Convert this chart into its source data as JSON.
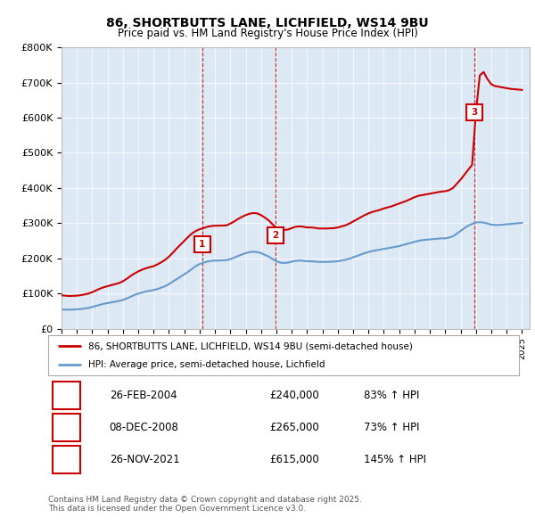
{
  "title": "86, SHORTBUTTS LANE, LICHFIELD, WS14 9BU",
  "subtitle": "Price paid vs. HM Land Registry's House Price Index (HPI)",
  "plot_bg_color": "#dce9f5",
  "ylim": [
    0,
    800000
  ],
  "yticks": [
    0,
    100000,
    200000,
    300000,
    400000,
    500000,
    600000,
    700000,
    800000
  ],
  "ytick_labels": [
    "£0",
    "£100K",
    "£200K",
    "£300K",
    "£400K",
    "£500K",
    "£600K",
    "£700K",
    "£800K"
  ],
  "xlim_start": 1995.0,
  "xlim_end": 2025.5,
  "legend_label_red": "86, SHORTBUTTS LANE, LICHFIELD, WS14 9BU (semi-detached house)",
  "legend_label_blue": "HPI: Average price, semi-detached house, Lichfield",
  "sale_dates": [
    2004.15,
    2008.93,
    2021.9
  ],
  "sale_prices": [
    240000,
    265000,
    615000
  ],
  "sale_labels": [
    "1",
    "2",
    "3"
  ],
  "sale_info": [
    [
      "1",
      "26-FEB-2004",
      "£240,000",
      "83% ↑ HPI"
    ],
    [
      "2",
      "08-DEC-2008",
      "£265,000",
      "73% ↑ HPI"
    ],
    [
      "3",
      "26-NOV-2021",
      "£615,000",
      "145% ↑ HPI"
    ]
  ],
  "footer": "Contains HM Land Registry data © Crown copyright and database right 2025.\nThis data is licensed under the Open Government Licence v3.0.",
  "red_color": "#cc0000",
  "blue_color": "#6699cc",
  "hpi_years": [
    1995.0,
    1995.25,
    1995.5,
    1995.75,
    1996.0,
    1996.25,
    1996.5,
    1996.75,
    1997.0,
    1997.25,
    1997.5,
    1997.75,
    1998.0,
    1998.25,
    1998.5,
    1998.75,
    1999.0,
    1999.25,
    1999.5,
    1999.75,
    2000.0,
    2000.25,
    2000.5,
    2000.75,
    2001.0,
    2001.25,
    2001.5,
    2001.75,
    2002.0,
    2002.25,
    2002.5,
    2002.75,
    2003.0,
    2003.25,
    2003.5,
    2003.75,
    2004.0,
    2004.25,
    2004.5,
    2004.75,
    2005.0,
    2005.25,
    2005.5,
    2005.75,
    2006.0,
    2006.25,
    2006.5,
    2006.75,
    2007.0,
    2007.25,
    2007.5,
    2007.75,
    2008.0,
    2008.25,
    2008.5,
    2008.75,
    2009.0,
    2009.25,
    2009.5,
    2009.75,
    2010.0,
    2010.25,
    2010.5,
    2010.75,
    2011.0,
    2011.25,
    2011.5,
    2011.75,
    2012.0,
    2012.25,
    2012.5,
    2012.75,
    2013.0,
    2013.25,
    2013.5,
    2013.75,
    2014.0,
    2014.25,
    2014.5,
    2014.75,
    2015.0,
    2015.25,
    2015.5,
    2015.75,
    2016.0,
    2016.25,
    2016.5,
    2016.75,
    2017.0,
    2017.25,
    2017.5,
    2017.75,
    2018.0,
    2018.25,
    2018.5,
    2018.75,
    2019.0,
    2019.25,
    2019.5,
    2019.75,
    2020.0,
    2020.25,
    2020.5,
    2020.75,
    2021.0,
    2021.25,
    2021.5,
    2021.75,
    2022.0,
    2022.25,
    2022.5,
    2022.75,
    2023.0,
    2023.25,
    2023.5,
    2023.75,
    2024.0,
    2024.25,
    2024.5,
    2024.75,
    2025.0
  ],
  "hpi_values": [
    55000,
    54500,
    54000,
    54500,
    55000,
    56000,
    57500,
    59000,
    62000,
    65000,
    68000,
    71000,
    73000,
    75000,
    77000,
    79000,
    82000,
    86000,
    91000,
    96000,
    100000,
    103000,
    106000,
    108000,
    110000,
    113000,
    117000,
    121000,
    127000,
    134000,
    141000,
    148000,
    155000,
    162000,
    170000,
    178000,
    184000,
    188000,
    191000,
    193000,
    194000,
    194000,
    194500,
    195000,
    198000,
    202000,
    207000,
    211000,
    215000,
    218000,
    219000,
    218000,
    215000,
    210000,
    205000,
    198000,
    192000,
    188000,
    187000,
    188000,
    191000,
    193000,
    194000,
    193000,
    192000,
    192000,
    191000,
    190000,
    190000,
    190000,
    190500,
    191000,
    192000,
    194000,
    196000,
    199000,
    203000,
    207000,
    211000,
    215000,
    218000,
    221000,
    223000,
    225000,
    227000,
    229000,
    231000,
    233000,
    235000,
    238000,
    241000,
    244000,
    247000,
    250000,
    252000,
    253000,
    254000,
    255000,
    256000,
    257000,
    257000,
    259000,
    263000,
    270000,
    278000,
    286000,
    293000,
    298000,
    302000,
    303000,
    302000,
    299000,
    296000,
    295000,
    295000,
    296000,
    297000,
    298000,
    299000,
    300000,
    301000
  ],
  "red_years": [
    1995.0,
    1995.25,
    1995.5,
    1995.75,
    1996.0,
    1996.25,
    1996.5,
    1996.75,
    1997.0,
    1997.25,
    1997.5,
    1997.75,
    1998.0,
    1998.25,
    1998.5,
    1998.75,
    1999.0,
    1999.25,
    1999.5,
    1999.75,
    2000.0,
    2000.25,
    2000.5,
    2000.75,
    2001.0,
    2001.25,
    2001.5,
    2001.75,
    2002.0,
    2002.25,
    2002.5,
    2002.75,
    2003.0,
    2003.25,
    2003.5,
    2003.75,
    2004.0,
    2004.25,
    2004.5,
    2004.75,
    2005.0,
    2005.25,
    2005.5,
    2005.75,
    2006.0,
    2006.25,
    2006.5,
    2006.75,
    2007.0,
    2007.25,
    2007.5,
    2007.75,
    2008.0,
    2008.25,
    2008.5,
    2008.75,
    2009.0,
    2009.25,
    2009.5,
    2009.75,
    2010.0,
    2010.25,
    2010.5,
    2010.75,
    2011.0,
    2011.25,
    2011.5,
    2011.75,
    2012.0,
    2012.25,
    2012.5,
    2012.75,
    2013.0,
    2013.25,
    2013.5,
    2013.75,
    2014.0,
    2014.25,
    2014.5,
    2014.75,
    2015.0,
    2015.25,
    2015.5,
    2015.75,
    2016.0,
    2016.25,
    2016.5,
    2016.75,
    2017.0,
    2017.25,
    2017.5,
    2017.75,
    2018.0,
    2018.25,
    2018.5,
    2018.75,
    2019.0,
    2019.25,
    2019.5,
    2019.75,
    2020.0,
    2020.25,
    2020.5,
    2020.75,
    2021.0,
    2021.25,
    2021.5,
    2021.75,
    2022.0,
    2022.25,
    2022.5,
    2022.75,
    2023.0,
    2023.25,
    2023.5,
    2023.75,
    2024.0,
    2024.25,
    2024.5,
    2024.75,
    2025.0
  ],
  "red_values": [
    95000,
    94000,
    93000,
    93500,
    94000,
    95500,
    97500,
    100000,
    104000,
    109000,
    114000,
    118000,
    121000,
    124000,
    127000,
    130000,
    135000,
    142000,
    150000,
    157000,
    163000,
    168000,
    172000,
    175000,
    178000,
    183000,
    189000,
    196000,
    205000,
    216000,
    228000,
    239000,
    250000,
    261000,
    271000,
    278000,
    283000,
    286000,
    290000,
    292000,
    293000,
    293000,
    293500,
    294000,
    299000,
    305000,
    312000,
    318000,
    323000,
    327000,
    329000,
    328000,
    323000,
    316000,
    308000,
    297000,
    286000,
    281000,
    281000,
    282000,
    286000,
    290000,
    291000,
    290000,
    288000,
    288000,
    287000,
    285000,
    285000,
    285000,
    285500,
    286000,
    288000,
    291000,
    294000,
    299000,
    305000,
    311000,
    317000,
    323000,
    328000,
    332000,
    335000,
    338000,
    342000,
    345000,
    348000,
    352000,
    356000,
    360000,
    364000,
    369000,
    374000,
    378000,
    380000,
    382000,
    384000,
    386000,
    388000,
    390000,
    391000,
    394000,
    400000,
    412000,
    424000,
    438000,
    452000,
    466000,
    615000,
    720000,
    730000,
    710000,
    695000,
    690000,
    688000,
    686000,
    684000,
    682000,
    681000,
    680000,
    679000
  ]
}
